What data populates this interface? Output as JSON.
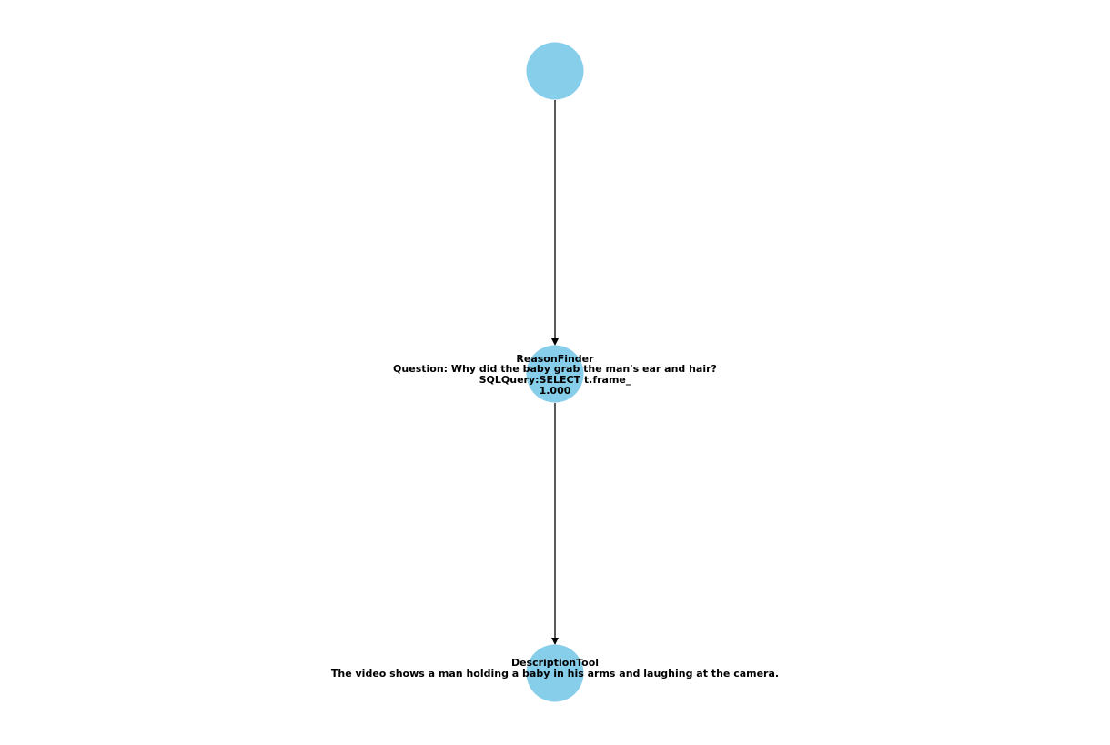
{
  "colors": {
    "node_fill": "#87ceeb",
    "edge": "#000000",
    "label": "#000000"
  },
  "nodes": [
    {
      "id": "root",
      "lines": []
    },
    {
      "id": "reason-finder",
      "lines": [
        "ReasonFinder",
        "Question: Why did the baby grab the man's ear and hair?",
        "SQLQuery:SELECT t.frame_",
        "1.000"
      ]
    },
    {
      "id": "description-tool",
      "lines": [
        "DescriptionTool",
        "The video shows a man holding a baby in his arms and laughing at the camera."
      ]
    }
  ],
  "edges": [
    {
      "from": "root",
      "to": "reason-finder"
    },
    {
      "from": "reason-finder",
      "to": "description-tool"
    }
  ]
}
